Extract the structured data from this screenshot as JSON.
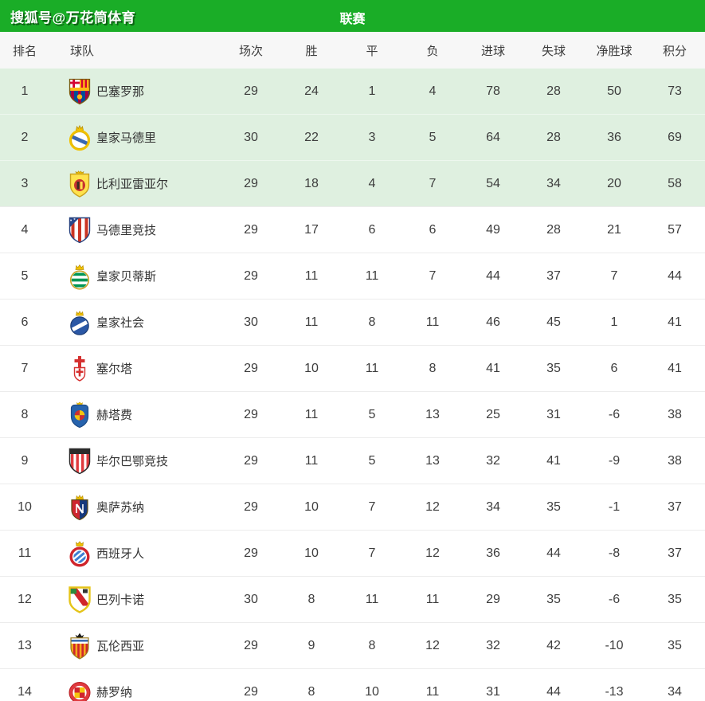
{
  "topbar": {
    "watermark": "搜狐号@万花筒体育",
    "title": "联赛"
  },
  "colors": {
    "header_green": "#1aad27",
    "highlight_row_bg": "#dff0e0",
    "header_row_bg": "#f7f7f7",
    "row_border": "#ececec",
    "text": "#3d3d3d"
  },
  "table": {
    "columns": [
      "排名",
      "球队",
      "场次",
      "胜",
      "平",
      "负",
      "进球",
      "失球",
      "净胜球",
      "积分"
    ],
    "rows": [
      {
        "rank": "1",
        "team": "巴塞罗那",
        "logo": "barcelona-crest-icon",
        "highlight": true,
        "played": "29",
        "won": "24",
        "drawn": "1",
        "lost": "4",
        "gf": "78",
        "ga": "28",
        "gd": "50",
        "pts": "73"
      },
      {
        "rank": "2",
        "team": "皇家马德里",
        "logo": "real-madrid-crest-icon",
        "highlight": true,
        "played": "30",
        "won": "22",
        "drawn": "3",
        "lost": "5",
        "gf": "64",
        "ga": "28",
        "gd": "36",
        "pts": "69"
      },
      {
        "rank": "3",
        "team": "比利亚雷亚尔",
        "logo": "villarreal-crest-icon",
        "highlight": true,
        "played": "29",
        "won": "18",
        "drawn": "4",
        "lost": "7",
        "gf": "54",
        "ga": "34",
        "gd": "20",
        "pts": "58"
      },
      {
        "rank": "4",
        "team": "马德里竞技",
        "logo": "atletico-madrid-crest-icon",
        "highlight": false,
        "played": "29",
        "won": "17",
        "drawn": "6",
        "lost": "6",
        "gf": "49",
        "ga": "28",
        "gd": "21",
        "pts": "57"
      },
      {
        "rank": "5",
        "team": "皇家贝蒂斯",
        "logo": "real-betis-crest-icon",
        "highlight": false,
        "played": "29",
        "won": "11",
        "drawn": "11",
        "lost": "7",
        "gf": "44",
        "ga": "37",
        "gd": "7",
        "pts": "44"
      },
      {
        "rank": "6",
        "team": "皇家社会",
        "logo": "real-sociedad-crest-icon",
        "highlight": false,
        "played": "30",
        "won": "11",
        "drawn": "8",
        "lost": "11",
        "gf": "46",
        "ga": "45",
        "gd": "1",
        "pts": "41"
      },
      {
        "rank": "7",
        "team": "塞尔塔",
        "logo": "celta-vigo-crest-icon",
        "highlight": false,
        "played": "29",
        "won": "10",
        "drawn": "11",
        "lost": "8",
        "gf": "41",
        "ga": "35",
        "gd": "6",
        "pts": "41"
      },
      {
        "rank": "8",
        "team": "赫塔费",
        "logo": "getafe-crest-icon",
        "highlight": false,
        "played": "29",
        "won": "11",
        "drawn": "5",
        "lost": "13",
        "gf": "25",
        "ga": "31",
        "gd": "-6",
        "pts": "38"
      },
      {
        "rank": "9",
        "team": "毕尔巴鄂竞技",
        "logo": "athletic-bilbao-crest-icon",
        "highlight": false,
        "played": "29",
        "won": "11",
        "drawn": "5",
        "lost": "13",
        "gf": "32",
        "ga": "41",
        "gd": "-9",
        "pts": "38"
      },
      {
        "rank": "10",
        "team": "奥萨苏纳",
        "logo": "osasuna-crest-icon",
        "highlight": false,
        "played": "29",
        "won": "10",
        "drawn": "7",
        "lost": "12",
        "gf": "34",
        "ga": "35",
        "gd": "-1",
        "pts": "37"
      },
      {
        "rank": "11",
        "team": "西班牙人",
        "logo": "espanyol-crest-icon",
        "highlight": false,
        "played": "29",
        "won": "10",
        "drawn": "7",
        "lost": "12",
        "gf": "36",
        "ga": "44",
        "gd": "-8",
        "pts": "37"
      },
      {
        "rank": "12",
        "team": "巴列卡诺",
        "logo": "rayo-vallecano-crest-icon",
        "highlight": false,
        "played": "30",
        "won": "8",
        "drawn": "11",
        "lost": "11",
        "gf": "29",
        "ga": "35",
        "gd": "-6",
        "pts": "35"
      },
      {
        "rank": "13",
        "team": "瓦伦西亚",
        "logo": "valencia-crest-icon",
        "highlight": false,
        "played": "29",
        "won": "9",
        "drawn": "8",
        "lost": "12",
        "gf": "32",
        "ga": "42",
        "gd": "-10",
        "pts": "35"
      },
      {
        "rank": "14",
        "team": "赫罗纳",
        "logo": "girona-crest-icon",
        "highlight": false,
        "played": "29",
        "won": "8",
        "drawn": "10",
        "lost": "11",
        "gf": "31",
        "ga": "44",
        "gd": "-13",
        "pts": "34"
      }
    ]
  }
}
